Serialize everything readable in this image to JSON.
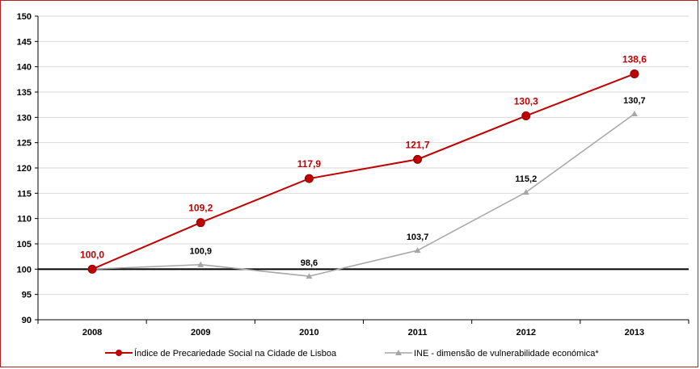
{
  "chart_data": {
    "type": "line",
    "categories": [
      "2008",
      "2009",
      "2010",
      "2011",
      "2012",
      "2013"
    ],
    "ylim": [
      90,
      150
    ],
    "yticks": [
      90,
      95,
      100,
      105,
      110,
      115,
      120,
      125,
      130,
      135,
      140,
      145,
      150
    ],
    "ytick_labels": [
      "90",
      "95",
      "100",
      "105",
      "110",
      "115",
      "120",
      "125",
      "130",
      "135",
      "140",
      "145",
      "150"
    ],
    "reference_line": 100,
    "grid": "horizontal",
    "legend_position": "bottom",
    "series": [
      {
        "name": "Índice de Precariedade Social na Cidade de Lisboa",
        "values": [
          100.0,
          109.2,
          117.9,
          121.7,
          130.3,
          138.6
        ],
        "labels": [
          "100,0",
          "109,2",
          "117,9",
          "121,7",
          "130,3",
          "138,6"
        ],
        "color": "#c00000",
        "marker": "circle"
      },
      {
        "name": "INE - dimensão de vulnerabilidade económica*",
        "values": [
          100.0,
          100.9,
          98.6,
          103.7,
          115.2,
          130.7
        ],
        "labels": [
          "",
          "100,9",
          "98,6",
          "103,7",
          "115,2",
          "130,7"
        ],
        "color": "#a6a6a6",
        "marker": "triangle"
      }
    ]
  }
}
